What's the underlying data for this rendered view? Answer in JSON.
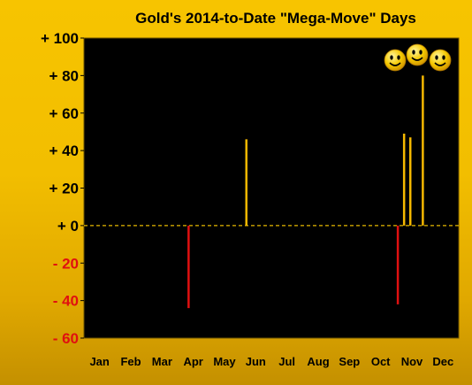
{
  "chart_data": {
    "type": "bar",
    "title": "Gold's 2014-to-Date \"Mega-Move\" Days",
    "xlabel": "",
    "ylabel": "",
    "x_ticks": [
      "Jan",
      "Feb",
      "Mar",
      "Apr",
      "May",
      "Jun",
      "Jul",
      "Aug",
      "Sep",
      "Oct",
      "Nov",
      "Dec"
    ],
    "y_ticks": [
      {
        "value": 100,
        "label": "+ 100"
      },
      {
        "value": 80,
        "label": "+ 80"
      },
      {
        "value": 60,
        "label": "+ 60"
      },
      {
        "value": 40,
        "label": "+ 40"
      },
      {
        "value": 20,
        "label": "+ 20"
      },
      {
        "value": 0,
        "label": "+ 0"
      },
      {
        "value": -20,
        "label": "- 20"
      },
      {
        "value": -40,
        "label": "- 40"
      },
      {
        "value": -60,
        "label": "- 60"
      }
    ],
    "ylim": [
      -60,
      100
    ],
    "xlim": [
      0,
      12
    ],
    "zero_line": {
      "style": "dashed",
      "color": "#e6b800"
    },
    "grid": false,
    "plot_background": "#000000",
    "colors": {
      "positive": "#f5b800",
      "negative": "#e01010",
      "positive_tick": "#000000",
      "negative_tick": "#e01010"
    },
    "series": [
      {
        "points": [
          {
            "x": 3.35,
            "y": -44
          },
          {
            "x": 5.2,
            "y": 46
          },
          {
            "x": 10.05,
            "y": -42
          },
          {
            "x": 10.25,
            "y": 49
          },
          {
            "x": 10.45,
            "y": 47
          },
          {
            "x": 10.85,
            "y": 80
          }
        ]
      }
    ],
    "decorations": {
      "icon": "smiley-faces-icon",
      "count": 3
    }
  }
}
